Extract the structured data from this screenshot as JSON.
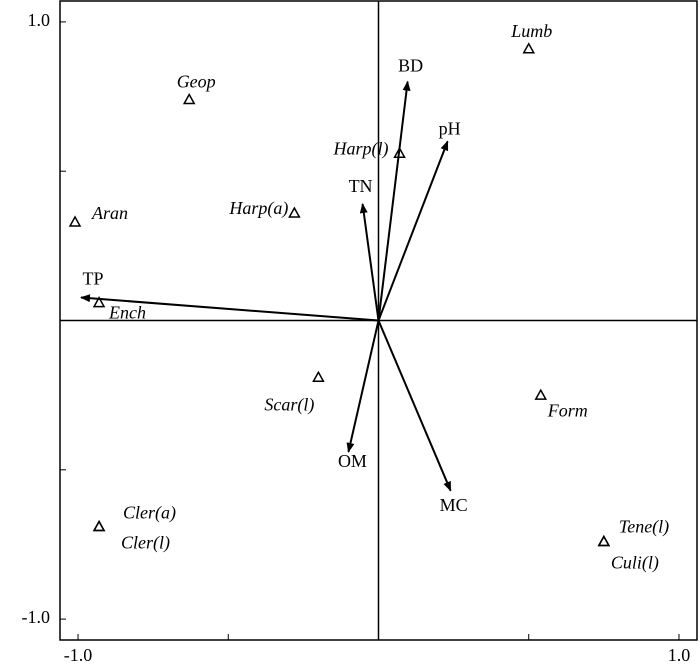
{
  "chart_data": {
    "type": "biplot",
    "points": {
      "names": [
        "Lumb",
        "Geop",
        "Harp(l)",
        "Aran",
        "Harp(a)",
        "Ench",
        "Scar(l)",
        "Form",
        "Cler(a)",
        "Cler(l)",
        "Tene(l)",
        "Culi(l)"
      ],
      "x": [
        0.5,
        -0.63,
        0.07,
        -1.01,
        -0.28,
        -0.93,
        -0.2,
        0.54,
        -0.93,
        -0.93,
        0.75,
        0.75
      ],
      "y": [
        0.91,
        0.74,
        0.56,
        0.33,
        0.36,
        0.06,
        -0.19,
        -0.25,
        -0.69,
        -0.69,
        -0.74,
        -0.74
      ]
    },
    "vectors": {
      "names": [
        "BD",
        "pH",
        "TN",
        "TP",
        "OM",
        "MC"
      ],
      "x": [
        0.097,
        0.23,
        -0.053,
        -0.99,
        -0.1,
        0.24
      ],
      "y": [
        0.8,
        0.6,
        0.39,
        0.077,
        -0.44,
        -0.57
      ]
    },
    "xlim": [
      -1.06,
      1.06
    ],
    "ylim": [
      -1.07,
      1.07
    ],
    "xticks": [
      {
        "value": -1.0,
        "label": "-1.0"
      },
      {
        "value": 1.0,
        "label": "1.0"
      }
    ],
    "yticks": [
      {
        "value": -1.0,
        "label": "-1.0"
      },
      {
        "value": 1.0,
        "label": "1.0"
      }
    ],
    "minor_ticks": [
      -0.5,
      0.5
    ],
    "color": "#000000"
  }
}
